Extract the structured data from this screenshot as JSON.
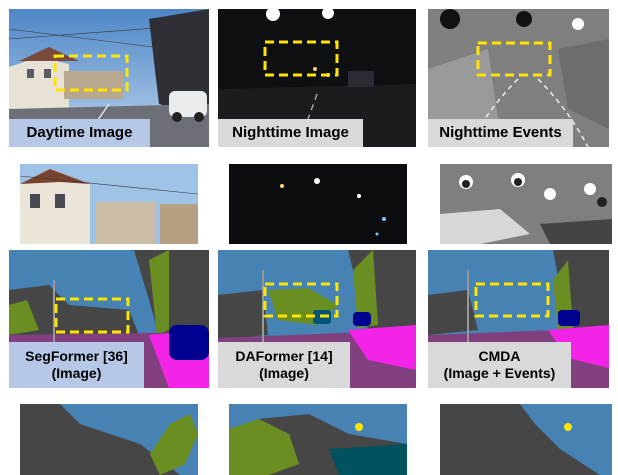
{
  "row1": {
    "daytime_caption": "Daytime Image",
    "nighttime_caption": "Nighttime Image",
    "events_caption": "Nighttime Events"
  },
  "row3": {
    "segformer_caption_line1": "SegFormer [36]",
    "segformer_caption_line2": "(Image)",
    "daformer_caption_line1": "DAFormer [14]",
    "daformer_caption_line2": "(Image)",
    "cmda_caption_line1": "CMDA",
    "cmda_caption_line2": "(Image + Events)"
  },
  "colors": {
    "sky": "#4682b4",
    "building": "#464646",
    "vegetation": "#6b8e23",
    "road": "#804080",
    "sidewalk": "#f423e8",
    "car": "#00008e",
    "highlight_box": "#ffe600"
  }
}
